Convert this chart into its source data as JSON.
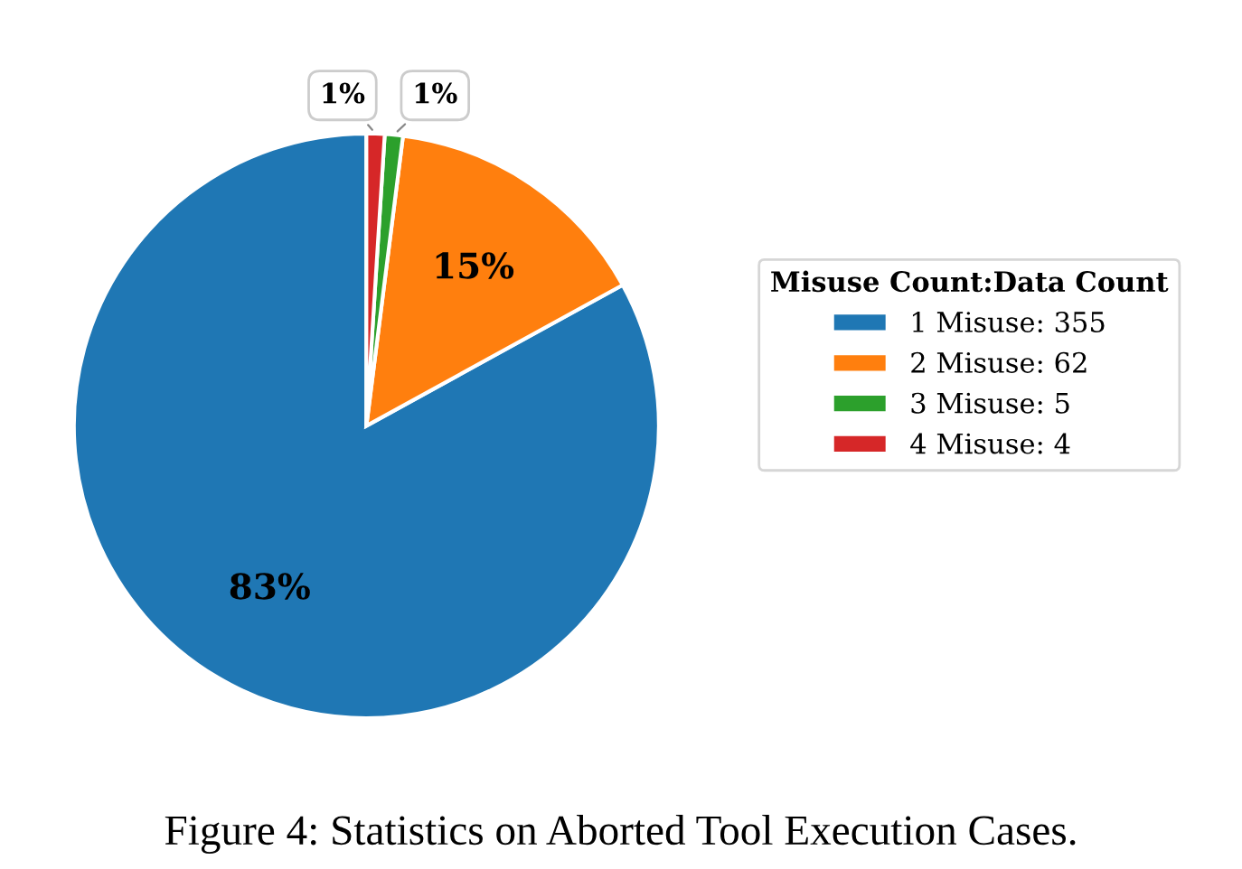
{
  "chart_data": {
    "type": "pie",
    "title": "Figure 4: Statistics on Aborted Tool Execution Cases.",
    "legend_title": "Misuse Count:Data Count",
    "categories": [
      "1 Misuse: 355",
      "2 Misuse: 62",
      "3 Misuse: 5",
      "4 Misuse: 4"
    ],
    "values": [
      83,
      15,
      1,
      1
    ],
    "colors": [
      "#1f77b4",
      "#ff7f0e",
      "#2ca02c",
      "#d62728"
    ],
    "value_labels": [
      "83%",
      "15%",
      "1%",
      "1%"
    ],
    "legend": "right"
  }
}
